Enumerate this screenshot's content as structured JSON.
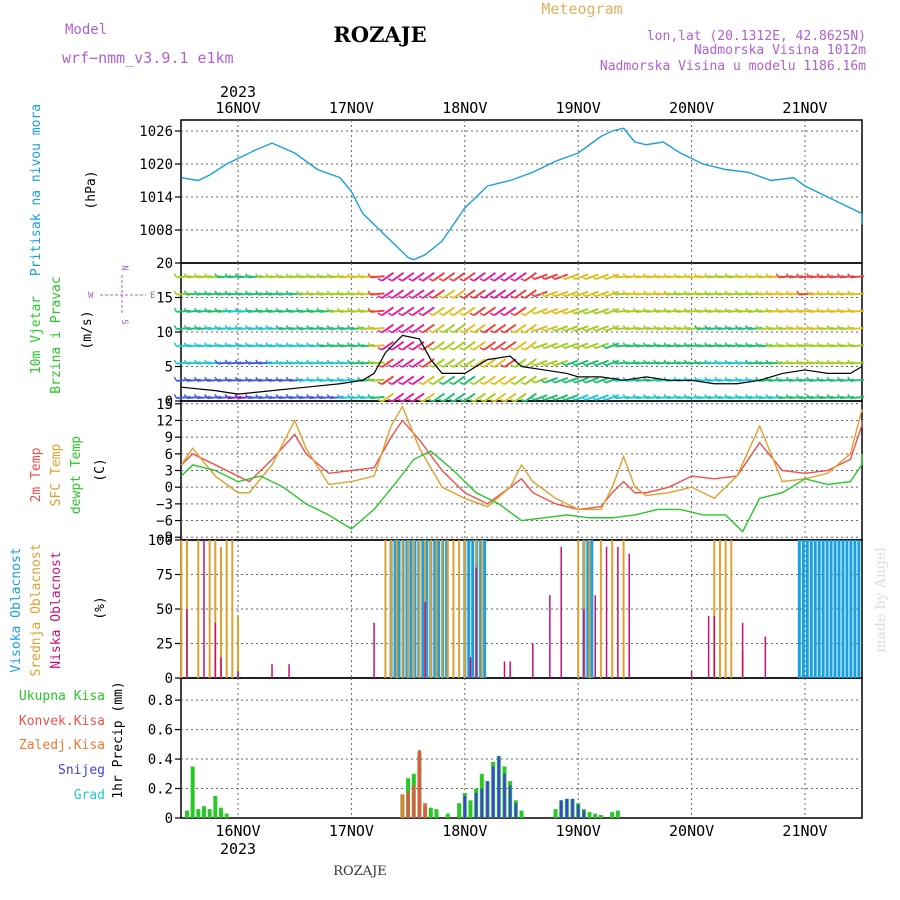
{
  "header": {
    "model_label": "Model",
    "model_name": "wrf−nmm_v3.9.1  e1km",
    "station": "ROZAJE",
    "product": "Meteogram",
    "coords": "lon,lat (20.1312E, 42.8625N)",
    "altitude": "Nadmorska Visina 1012m",
    "model_altitude": "Nadmorska Visina u modelu 1186.16m",
    "footer_station": "ROZAJE",
    "credit": "made by Angel"
  },
  "colors": {
    "pressure": "#1a9fe0",
    "t2m": "#f0504a",
    "sfc": "#e0a030",
    "dew": "#28c828",
    "cloud_high": "#1a9fe0",
    "cloud_mid": "#e0a030",
    "cloud_low": "#c8107a",
    "precip_total": "#28c828",
    "precip_conv": "#f0504a",
    "precip_frozen": "#f07830",
    "snow": "#4040e0",
    "graupel": "#20c8c8",
    "purple_text": "#b060d0",
    "orange_text": "#e0b060"
  },
  "x_axis": {
    "top_year": "2023",
    "bottom_year": "2023",
    "ticks": [
      "16NOV",
      "17NOV",
      "18NOV",
      "19NOV",
      "20NOV",
      "21NOV"
    ]
  },
  "panels": {
    "pressure": {
      "labels": [
        "Pritisak na nivou mora"
      ],
      "unit": "(hPa)",
      "ticks": [
        "1026",
        "1020",
        "1014",
        "1008"
      ]
    },
    "wind": {
      "labels": [
        "10m Vjetar",
        "Brzina i Pravac"
      ],
      "unit": "(m/s)",
      "ticks": [
        "20",
        "15",
        "10",
        "5",
        "0"
      ],
      "compass": [
        "W",
        "E",
        "N",
        "S"
      ]
    },
    "temp": {
      "labels": [
        "2m Temp",
        "SFC Temp",
        "dewpt Temp"
      ],
      "unit": "(C)",
      "ticks": [
        "15",
        "12",
        "9",
        "6",
        "3",
        "0",
        "−3",
        "−6",
        "−9"
      ]
    },
    "cloud": {
      "labels": [
        "Visoka Oblacnost",
        "Srednja Oblacnost",
        "Niska Oblacnost"
      ],
      "unit": "(%)",
      "ticks": [
        "100",
        "75",
        "50",
        "25",
        "0"
      ]
    },
    "precip": {
      "legend": [
        "Ukupna Kisa",
        "Konvek.Kisa",
        "Zaledj.Kisa",
        "Snijeg",
        "Grad"
      ],
      "unit": "1hr Precip (mm)",
      "ticks": [
        "0.8",
        "0.6",
        "0.4",
        "0.2",
        "0"
      ]
    }
  },
  "chart_data": {
    "type": "line",
    "x_unit": "day index (0 = 16NOV 00UTC)",
    "x_range": [
      -0.5,
      5.65
    ],
    "pressure": {
      "name": "Pritisak na nivou mora",
      "ylim": [
        1002,
        1028
      ],
      "x": [
        -0.5,
        -0.35,
        -0.25,
        -0.1,
        0.0,
        0.15,
        0.3,
        0.5,
        0.7,
        0.9,
        1.0,
        1.1,
        1.25,
        1.4,
        1.5,
        1.55,
        1.65,
        1.8,
        2.0,
        2.2,
        2.4,
        2.6,
        2.8,
        3.0,
        3.1,
        3.2,
        3.3,
        3.4,
        3.5,
        3.6,
        3.75,
        3.9,
        4.1,
        4.3,
        4.5,
        4.7,
        4.9,
        5.0,
        5.15,
        5.3,
        5.5,
        5.65
      ],
      "values": [
        1017.5,
        1017,
        1018,
        1020,
        1021,
        1022.5,
        1023.8,
        1022,
        1019,
        1017.5,
        1015,
        1011,
        1008,
        1005,
        1003,
        1002.6,
        1003.5,
        1006,
        1012,
        1016,
        1017,
        1018.5,
        1020.5,
        1022,
        1023.5,
        1025,
        1026,
        1026.5,
        1024,
        1023.5,
        1024,
        1022,
        1020,
        1019,
        1018.5,
        1017,
        1017.5,
        1016,
        1014.5,
        1013,
        1011,
        1009
      ]
    },
    "wind_speed": {
      "name": "10m wind speed",
      "ylim": [
        0,
        20
      ],
      "x": [
        -0.5,
        -0.2,
        0.0,
        0.3,
        0.6,
        0.9,
        1.1,
        1.2,
        1.3,
        1.45,
        1.6,
        1.7,
        1.8,
        2.0,
        2.2,
        2.4,
        2.5,
        2.7,
        2.9,
        3.0,
        3.2,
        3.4,
        3.6,
        3.8,
        4.0,
        4.2,
        4.4,
        4.6,
        4.8,
        5.0,
        5.2,
        5.4,
        5.6
      ],
      "values": [
        2,
        1.5,
        1,
        1.5,
        2,
        2.5,
        3,
        4,
        7,
        9.5,
        9,
        6,
        4,
        4,
        6,
        6.5,
        5,
        4.5,
        4,
        3.5,
        3.5,
        3,
        3.5,
        3,
        3,
        2.5,
        2.5,
        3,
        4,
        4.5,
        4,
        4,
        5
      ]
    },
    "temperature": {
      "ylim": [
        -9.5,
        15.5
      ],
      "series": [
        {
          "name": "2m Temp",
          "x": [
            -0.5,
            -0.4,
            -0.2,
            0.0,
            0.1,
            0.3,
            0.5,
            0.6,
            0.8,
            1.0,
            1.2,
            1.35,
            1.45,
            1.6,
            1.8,
            2.0,
            2.2,
            2.4,
            2.5,
            2.6,
            2.8,
            3.0,
            3.2,
            3.3,
            3.4,
            3.5,
            3.6,
            3.8,
            4.0,
            4.2,
            4.4,
            4.6,
            4.8,
            5.0,
            5.2,
            5.4,
            5.5,
            5.65
          ],
          "values": [
            4,
            6,
            4,
            2,
            1,
            5,
            9.5,
            6,
            2.5,
            3,
            3.5,
            9,
            12,
            8.5,
            3,
            -1,
            -3,
            0,
            1.5,
            -1,
            -3,
            -4,
            -3.5,
            -1,
            1,
            -1,
            -1,
            0,
            2,
            1.5,
            2,
            8,
            3,
            2.5,
            3,
            5,
            11,
            12
          ]
        },
        {
          "name": "SFC Temp",
          "x": [
            -0.5,
            -0.4,
            -0.2,
            0.0,
            0.1,
            0.3,
            0.5,
            0.6,
            0.8,
            1.0,
            1.2,
            1.35,
            1.45,
            1.6,
            1.8,
            2.0,
            2.2,
            2.4,
            2.5,
            2.6,
            2.8,
            3.0,
            3.2,
            3.3,
            3.4,
            3.5,
            3.6,
            3.8,
            4.0,
            4.2,
            4.4,
            4.6,
            4.8,
            5.0,
            5.2,
            5.4,
            5.55,
            5.65
          ],
          "values": [
            4,
            7,
            2,
            -1,
            -1,
            4,
            12,
            7,
            0.5,
            1,
            2,
            11,
            14.5,
            7,
            0,
            -2,
            -3.5,
            0,
            4,
            1,
            -2,
            -4,
            -4,
            0,
            5.5,
            0,
            -1.5,
            -1,
            0,
            -2,
            2,
            11,
            1,
            1.5,
            2.5,
            6,
            14,
            13.5
          ]
        },
        {
          "name": "dewpt Temp",
          "x": [
            -0.5,
            -0.4,
            -0.2,
            0.0,
            0.2,
            0.4,
            0.6,
            0.8,
            1.0,
            1.2,
            1.4,
            1.55,
            1.7,
            1.9,
            2.1,
            2.3,
            2.5,
            2.7,
            2.9,
            3.1,
            3.3,
            3.5,
            3.7,
            3.9,
            4.1,
            4.3,
            4.45,
            4.6,
            4.8,
            5.0,
            5.2,
            5.4,
            5.5,
            5.65
          ],
          "values": [
            2,
            4,
            3,
            1,
            2,
            0,
            -3,
            -5,
            -7.5,
            -4,
            1,
            5,
            6.5,
            3,
            -1,
            -3,
            -6,
            -5.5,
            -5,
            -5.5,
            -5.5,
            -5,
            -4,
            -4,
            -5,
            -5,
            -8,
            -2,
            -1,
            1.5,
            0.5,
            1,
            4,
            6
          ]
        }
      ]
    },
    "cloud_cover": {
      "ylim": [
        0,
        100
      ],
      "high": [
        [
          1.35,
          1.85
        ],
        [
          2.0,
          2.2
        ],
        [
          3.05,
          3.15
        ],
        [
          4.95,
          5.65
        ]
      ],
      "mid_bars": [
        [
          -0.5,
          100
        ],
        [
          -0.45,
          100
        ],
        [
          -0.35,
          100
        ],
        [
          -0.25,
          100
        ],
        [
          -0.2,
          100
        ],
        [
          -0.15,
          95
        ],
        [
          -0.1,
          100
        ],
        [
          -0.05,
          100
        ],
        [
          0.0,
          45
        ],
        [
          1.3,
          100
        ],
        [
          1.35,
          100
        ],
        [
          1.4,
          100
        ],
        [
          1.45,
          100
        ],
        [
          1.5,
          100
        ],
        [
          1.55,
          100
        ],
        [
          1.6,
          100
        ],
        [
          1.65,
          100
        ],
        [
          1.7,
          100
        ],
        [
          1.75,
          100
        ],
        [
          1.8,
          100
        ],
        [
          1.85,
          100
        ],
        [
          1.9,
          100
        ],
        [
          1.95,
          100
        ],
        [
          2.0,
          100
        ],
        [
          2.1,
          100
        ],
        [
          2.15,
          100
        ],
        [
          3.0,
          100
        ],
        [
          3.05,
          100
        ],
        [
          3.1,
          100
        ],
        [
          3.2,
          100
        ],
        [
          3.3,
          100
        ],
        [
          3.4,
          100
        ],
        [
          4.2,
          100
        ],
        [
          4.25,
          100
        ],
        [
          4.3,
          100
        ],
        [
          4.35,
          100
        ],
        [
          4.45,
          20
        ],
        [
          5.55,
          100
        ],
        [
          5.6,
          100
        ]
      ],
      "low_bars": [
        [
          -0.45,
          50
        ],
        [
          -0.3,
          100
        ],
        [
          -0.2,
          40
        ],
        [
          -0.15,
          15
        ],
        [
          0.0,
          5
        ],
        [
          0.3,
          10
        ],
        [
          0.45,
          10
        ],
        [
          1.2,
          40
        ],
        [
          1.65,
          55
        ],
        [
          2.05,
          15
        ],
        [
          2.1,
          80
        ],
        [
          2.35,
          12
        ],
        [
          2.4,
          12
        ],
        [
          2.6,
          25
        ],
        [
          2.75,
          60
        ],
        [
          2.85,
          95
        ],
        [
          3.05,
          50
        ],
        [
          3.15,
          60
        ],
        [
          3.25,
          95
        ],
        [
          3.35,
          95
        ],
        [
          3.45,
          90
        ],
        [
          4.0,
          5
        ],
        [
          4.15,
          45
        ],
        [
          4.2,
          45
        ],
        [
          4.45,
          40
        ],
        [
          4.65,
          30
        ]
      ]
    },
    "precipitation": {
      "ylim": [
        0,
        0.95
      ],
      "total": [
        [
          -0.45,
          0.05
        ],
        [
          -0.4,
          0.35
        ],
        [
          -0.35,
          0.06
        ],
        [
          -0.3,
          0.08
        ],
        [
          -0.25,
          0.06
        ],
        [
          -0.2,
          0.15
        ],
        [
          -0.15,
          0.07
        ],
        [
          -0.1,
          0.03
        ],
        [
          1.45,
          0.16
        ],
        [
          1.5,
          0.27
        ],
        [
          1.55,
          0.3
        ],
        [
          1.6,
          0.45
        ],
        [
          1.65,
          0.1
        ],
        [
          1.7,
          0.07
        ],
        [
          1.75,
          0.06
        ],
        [
          1.85,
          0.03
        ],
        [
          1.95,
          0.1
        ],
        [
          2.0,
          0.17
        ],
        [
          2.05,
          0.12
        ],
        [
          2.1,
          0.2
        ],
        [
          2.15,
          0.3
        ],
        [
          2.2,
          0.25
        ],
        [
          2.25,
          0.38
        ],
        [
          2.3,
          0.42
        ],
        [
          2.35,
          0.35
        ],
        [
          2.4,
          0.25
        ],
        [
          2.45,
          0.12
        ],
        [
          2.5,
          0.05
        ],
        [
          2.8,
          0.06
        ],
        [
          2.85,
          0.12
        ],
        [
          2.9,
          0.13
        ],
        [
          2.95,
          0.13
        ],
        [
          3.0,
          0.1
        ],
        [
          3.05,
          0.06
        ],
        [
          3.1,
          0.04
        ],
        [
          3.15,
          0.03
        ],
        [
          3.2,
          0.02
        ],
        [
          3.3,
          0.04
        ],
        [
          3.35,
          0.05
        ]
      ],
      "convective": [
        [
          1.5,
          0.18
        ],
        [
          1.55,
          0.22
        ],
        [
          1.6,
          0.46
        ],
        [
          1.65,
          0.08
        ]
      ],
      "frozen": [
        [
          1.45,
          0.16
        ],
        [
          1.6,
          0.1
        ],
        [
          1.65,
          0.1
        ]
      ],
      "snow": [
        [
          2.0,
          0.15
        ],
        [
          2.1,
          0.17
        ],
        [
          2.15,
          0.2
        ],
        [
          2.2,
          0.25
        ],
        [
          2.25,
          0.35
        ],
        [
          2.3,
          0.42
        ],
        [
          2.35,
          0.3
        ],
        [
          2.4,
          0.22
        ],
        [
          2.45,
          0.1
        ],
        [
          2.85,
          0.12
        ],
        [
          2.9,
          0.13
        ],
        [
          2.95,
          0.13
        ],
        [
          3.0,
          0.09
        ],
        [
          3.05,
          0.05
        ]
      ],
      "graupel": []
    }
  }
}
